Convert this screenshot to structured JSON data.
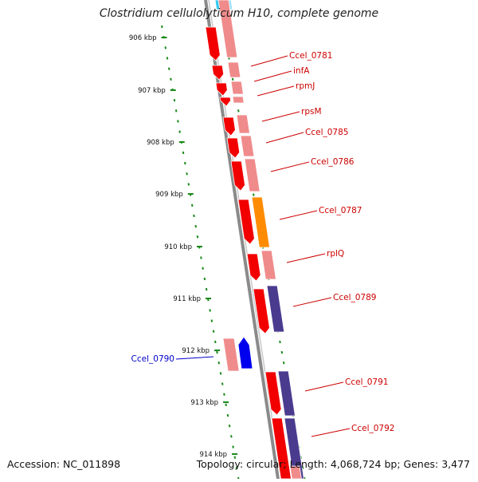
{
  "title": "Clostridium cellulolyticum H10, complete genome",
  "footer": {
    "accession": "Accession: NC_011898",
    "summary": "Topology: circular; Length: 4,068,724 bp; Genes: 3,477"
  },
  "colors": {
    "gene_forward": "#f20000",
    "gene_pale": "#f08b8b",
    "gene_orange": "#ff8c00",
    "gene_purple": "#4b3b8f",
    "gene_blue": "#0000ee",
    "gene_cyan": "#33c9f0",
    "label_red": "#cc0000",
    "label_blue": "#0000cc",
    "ruler_green": "#1a8a1a"
  },
  "ruler": {
    "unit": "kbp",
    "ticks": [
      "906 kbp",
      "907 kbp",
      "908 kbp",
      "909 kbp",
      "910 kbp",
      "911 kbp",
      "912 kbp",
      "913 kbp",
      "914 kbp"
    ]
  },
  "genes": [
    {
      "label": "Ccel_0781",
      "color": "label_red"
    },
    {
      "label": "infA",
      "color": "label_red"
    },
    {
      "label": "rpmJ",
      "color": "label_red"
    },
    {
      "label": "rpsM",
      "color": "label_red"
    },
    {
      "label": "Ccel_0785",
      "color": "label_red"
    },
    {
      "label": "Ccel_0786",
      "color": "label_red"
    },
    {
      "label": "Ccel_0787",
      "color": "label_red"
    },
    {
      "label": "rplQ",
      "color": "label_red"
    },
    {
      "label": "Ccel_0789",
      "color": "label_red"
    },
    {
      "label": "Ccel_0790",
      "color": "label_blue"
    },
    {
      "label": "Ccel_0791",
      "color": "label_red"
    },
    {
      "label": "Ccel_0792",
      "color": "label_red"
    }
  ]
}
